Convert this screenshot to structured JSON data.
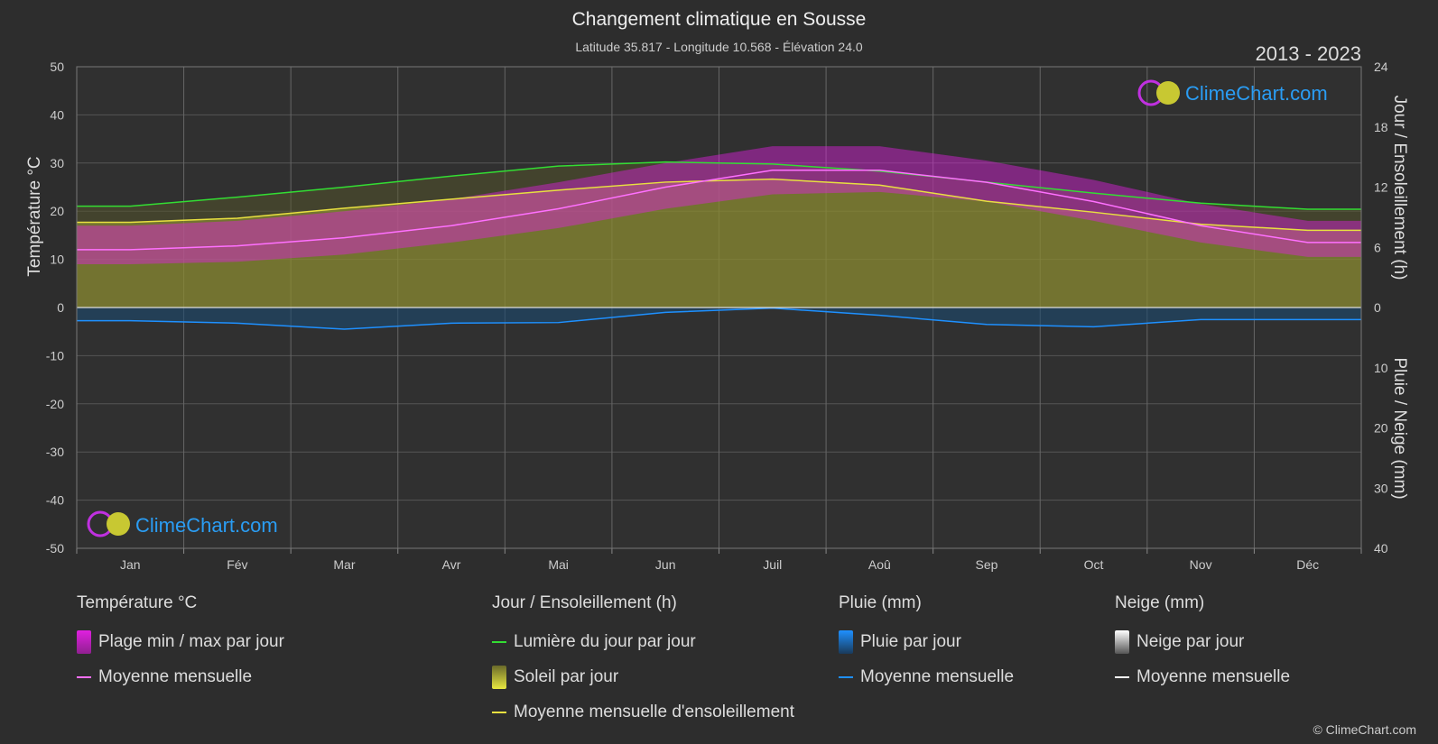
{
  "header": {
    "title": "Changement climatique en Sousse",
    "subtitle": "Latitude 35.817 - Longitude 10.568 - Élévation 24.0",
    "years": "2013 - 2023"
  },
  "axes": {
    "left_label": "Température °C",
    "right_top_label": "Jour / Ensoleillement (h)",
    "right_bottom_label": "Pluie / Neige (mm)"
  },
  "logo_text": "ClimeChart.com",
  "copyright": "© ClimeChart.com",
  "legend": {
    "temperature": {
      "title": "Température °C",
      "items": [
        "Plage min / max par jour",
        "Moyenne mensuelle"
      ]
    },
    "sun": {
      "title": "Jour / Ensoleillement (h)",
      "items": [
        "Lumière du jour par jour",
        "Soleil par jour",
        "Moyenne mensuelle d'ensoleillement"
      ]
    },
    "rain": {
      "title": "Pluie (mm)",
      "items": [
        "Pluie par jour",
        "Moyenne mensuelle"
      ]
    },
    "snow": {
      "title": "Neige (mm)",
      "items": [
        "Neige par jour",
        "Moyenne mensuelle"
      ]
    }
  },
  "colors": {
    "background": "#2d2d2d",
    "plot_bg": "#303030",
    "temp_range": "#e020e0",
    "temp_mean": "#ff70ff",
    "daylight": "#33dd33",
    "sun": "#c8c832",
    "sun_mean": "#e8e040",
    "rain": "#1e90ff",
    "snow": "#ffffff"
  },
  "chart_data": {
    "type": "area",
    "months": [
      "Jan",
      "Fév",
      "Mar",
      "Avr",
      "Mai",
      "Jun",
      "Juil",
      "Aoû",
      "Sep",
      "Oct",
      "Nov",
      "Déc"
    ],
    "left_axis": {
      "label": "Température °C",
      "range": [
        -50,
        50
      ],
      "ticks": [
        50,
        40,
        30,
        20,
        10,
        0,
        -10,
        -20,
        -30,
        -40,
        -50
      ]
    },
    "right_axis_top": {
      "label": "Jour / Ensoleillement (h)",
      "range": [
        0,
        24
      ],
      "ticks": [
        24,
        18,
        12,
        6,
        0
      ]
    },
    "right_axis_bottom": {
      "label": "Pluie / Neige (mm)",
      "range": [
        0,
        40
      ],
      "ticks": [
        0,
        10,
        20,
        30,
        40
      ]
    },
    "series": [
      {
        "name": "Lumière du jour par jour",
        "unit": "h",
        "values": [
          10.1,
          11.0,
          12.0,
          13.1,
          14.1,
          14.5,
          14.3,
          13.6,
          12.5,
          11.4,
          10.4,
          9.8
        ]
      },
      {
        "name": "Moyenne mensuelle d'ensoleillement",
        "unit": "h",
        "values": [
          8.5,
          8.9,
          9.9,
          10.8,
          11.7,
          12.5,
          12.8,
          12.2,
          10.6,
          9.5,
          8.3,
          7.7
        ]
      },
      {
        "name": "Moyenne mensuelle",
        "metric": "temperature",
        "unit": "°C",
        "values": [
          12.0,
          12.8,
          14.5,
          17.0,
          20.5,
          25.0,
          28.5,
          28.5,
          26.0,
          22.0,
          17.0,
          13.5
        ]
      },
      {
        "name": "Moyenne mensuelle",
        "metric": "rain",
        "unit": "mm",
        "values": [
          2.2,
          2.6,
          3.6,
          2.6,
          2.5,
          0.8,
          0.1,
          1.3,
          2.8,
          3.2,
          2.0,
          2.0
        ]
      },
      {
        "name": "Plage min / max par jour",
        "metric": "temperature_min",
        "unit": "°C",
        "values": [
          9.0,
          9.5,
          11.0,
          13.5,
          16.5,
          20.5,
          23.5,
          24.0,
          22.0,
          18.0,
          13.5,
          10.5
        ]
      },
      {
        "name": "Plage min / max par jour",
        "metric": "temperature_max",
        "unit": "°C",
        "values": [
          17.0,
          18.0,
          20.0,
          22.5,
          26.0,
          30.0,
          33.5,
          33.5,
          30.5,
          26.5,
          21.5,
          18.0
        ]
      }
    ],
    "grid": true
  }
}
